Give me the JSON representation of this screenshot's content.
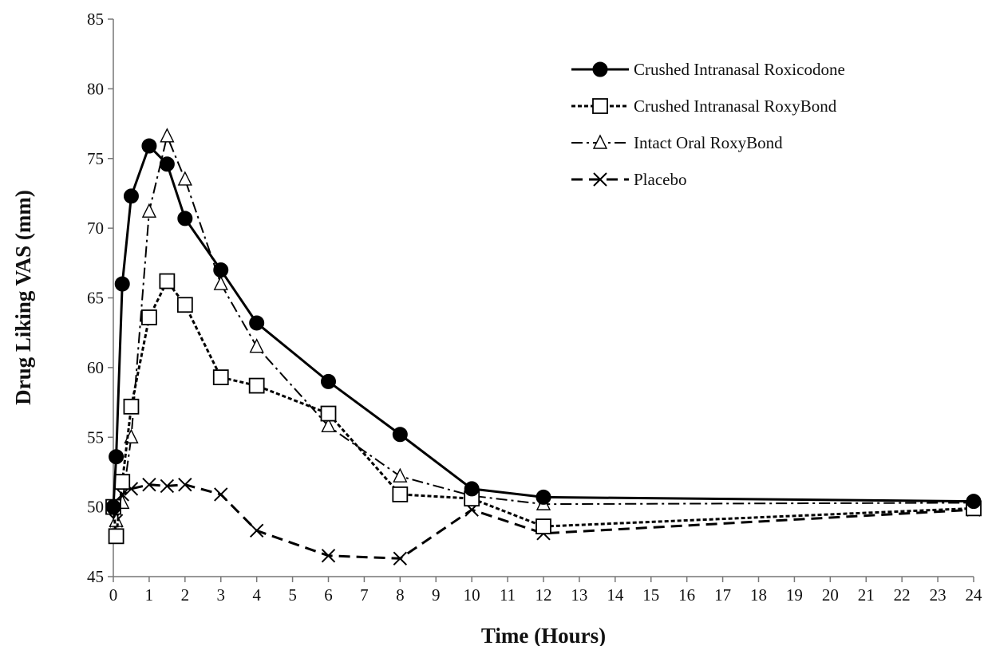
{
  "chart_data": {
    "type": "line",
    "title": "",
    "xlabel": "Time (Hours)",
    "ylabel": "Drug Liking VAS (mm)",
    "xlim": [
      0,
      24
    ],
    "ylim": [
      45,
      85
    ],
    "xticks": [
      0,
      1,
      2,
      3,
      4,
      5,
      6,
      7,
      8,
      9,
      10,
      11,
      12,
      13,
      14,
      15,
      16,
      17,
      18,
      19,
      20,
      21,
      22,
      23,
      24
    ],
    "yticks": [
      45,
      50,
      55,
      60,
      65,
      70,
      75,
      80,
      85
    ],
    "grid": false,
    "legend_position": "top-right",
    "series": [
      {
        "name": "Crushed Intranasal Roxicodone",
        "line_style": "solid",
        "marker": "filled-circle",
        "color": "#000000",
        "x": [
          0,
          0.08,
          0.25,
          0.5,
          1,
          1.5,
          2,
          3,
          4,
          6,
          8,
          10,
          12,
          24
        ],
        "y": [
          50.0,
          53.6,
          66.0,
          72.3,
          75.9,
          74.6,
          70.7,
          67.0,
          63.2,
          59.0,
          55.2,
          51.3,
          50.7,
          50.4
        ]
      },
      {
        "name": "Crushed Intranasal RoxyBond",
        "line_style": "dotted",
        "marker": "open-square",
        "color": "#000000",
        "x": [
          0,
          0.08,
          0.25,
          0.5,
          1,
          1.5,
          2,
          3,
          4,
          6,
          8,
          10,
          12,
          24
        ],
        "y": [
          50.0,
          47.9,
          51.8,
          57.2,
          63.6,
          66.2,
          64.5,
          59.3,
          58.7,
          56.7,
          50.9,
          50.6,
          48.6,
          49.9
        ]
      },
      {
        "name": "Intact Oral RoxyBond",
        "line_style": "dash-dot",
        "marker": "open-triangle",
        "color": "#000000",
        "x": [
          0,
          0.08,
          0.25,
          0.5,
          1,
          1.5,
          2,
          3,
          4,
          6,
          8,
          10,
          12,
          24
        ],
        "y": [
          50.0,
          49.0,
          50.3,
          55.0,
          71.2,
          76.6,
          73.5,
          66.0,
          61.5,
          55.8,
          52.2,
          50.8,
          50.2,
          50.3
        ]
      },
      {
        "name": "Placebo",
        "line_style": "dashed",
        "marker": "x",
        "color": "#000000",
        "x": [
          0,
          0.08,
          0.25,
          0.5,
          1,
          1.5,
          2,
          3,
          4,
          6,
          8,
          10,
          12,
          24
        ],
        "y": [
          50.0,
          49.0,
          50.9,
          51.3,
          51.6,
          51.5,
          51.6,
          50.9,
          48.3,
          46.5,
          46.3,
          49.8,
          48.1,
          49.8
        ]
      }
    ]
  }
}
